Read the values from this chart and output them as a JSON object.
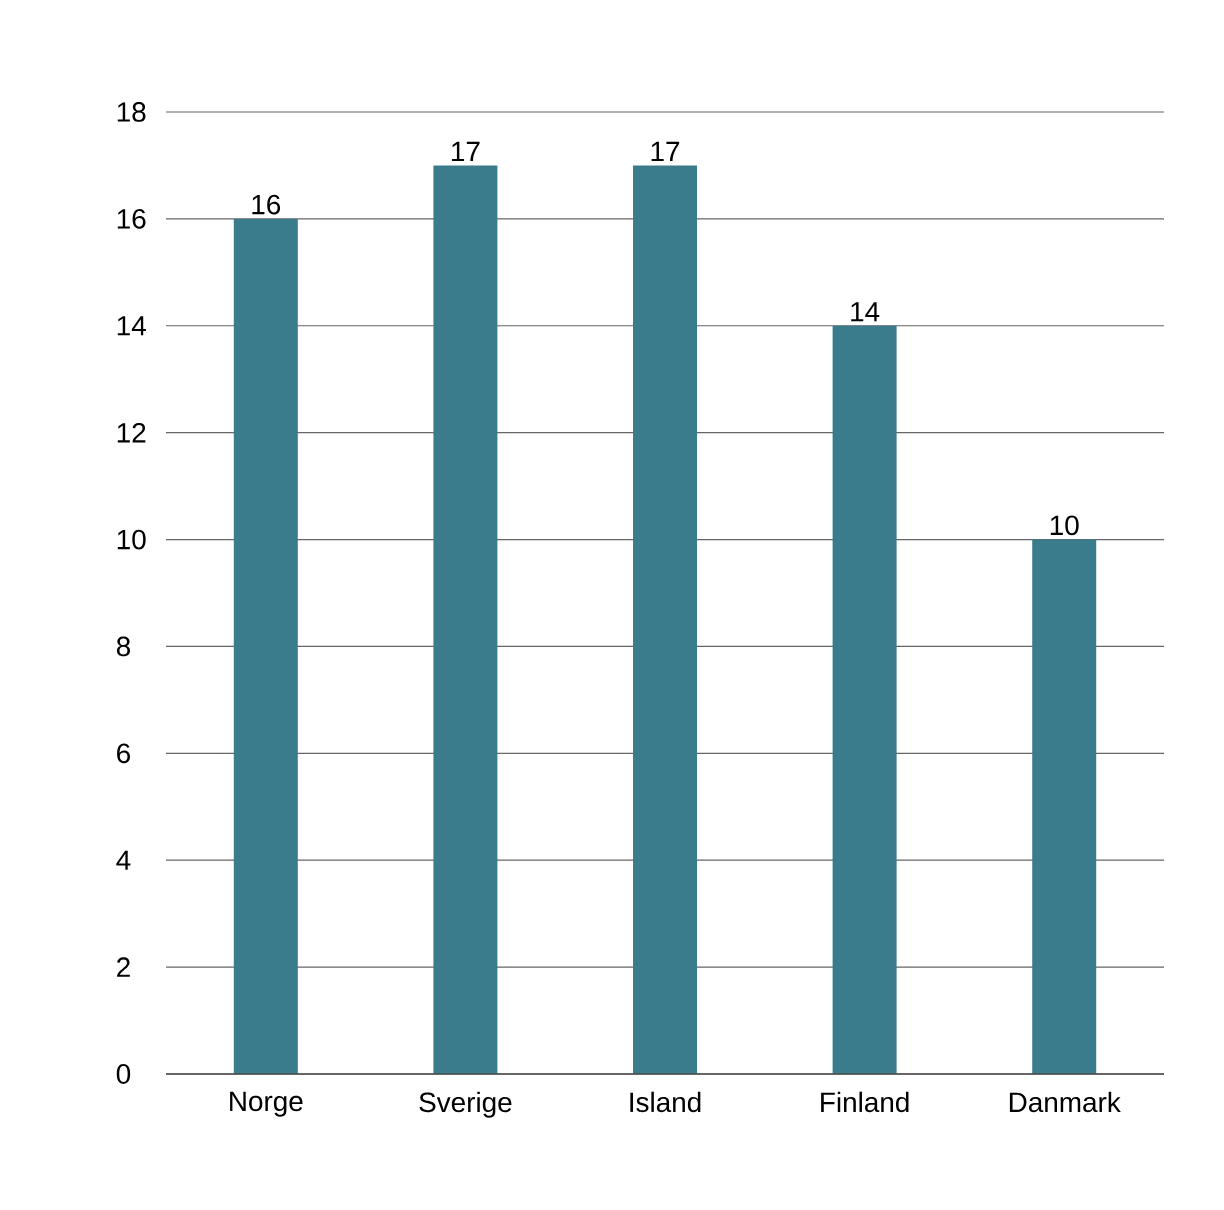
{
  "chart_data": {
    "type": "bar",
    "categories": [
      "Norge",
      "Sverige",
      "Island",
      "Finland",
      "Danmark"
    ],
    "values": [
      16,
      17,
      17,
      14,
      10
    ],
    "color": "#3a7c8c",
    "ylim": [
      0,
      18
    ],
    "yticks": [
      0,
      2,
      4,
      6,
      8,
      10,
      12,
      14,
      16,
      18
    ],
    "grid": "y",
    "data_labels": true
  }
}
